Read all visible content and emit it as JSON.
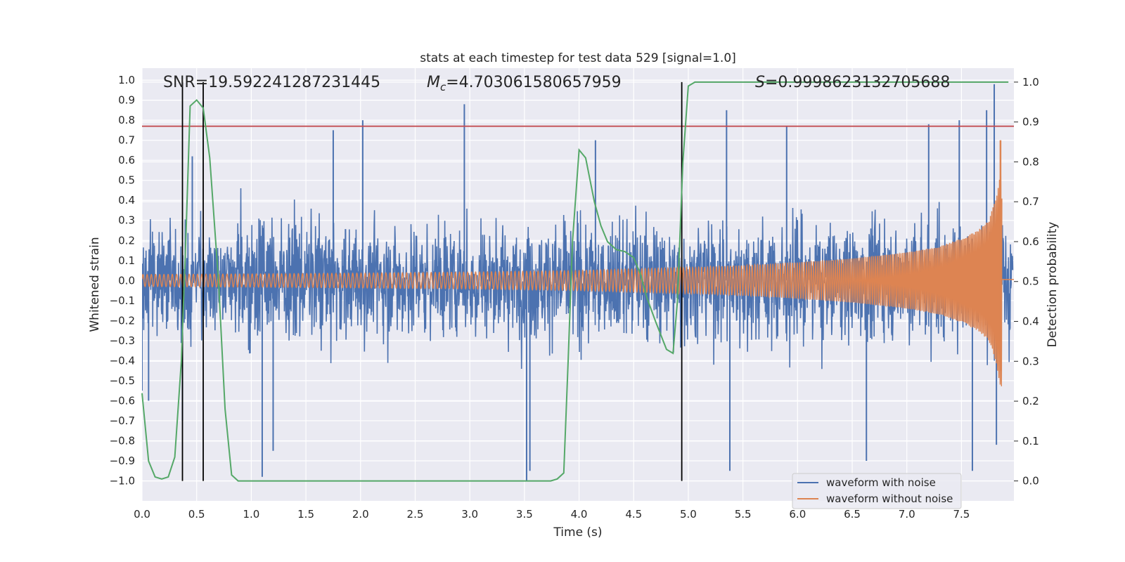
{
  "chart_data": {
    "type": "line",
    "title": "stats at each timestep for test data 529 [signal=1.0]",
    "xlabel": "Time (s)",
    "ylabel_left": "Whitened strain",
    "ylabel_right": "Detection probability",
    "xlim": [
      0.0,
      7.98
    ],
    "ylim_left": [
      -1.1,
      1.06
    ],
    "ylim_right": [
      -0.05,
      1.035
    ],
    "x_ticks": [
      "0.0",
      "0.5",
      "1.0",
      "1.5",
      "2.0",
      "2.5",
      "3.0",
      "3.5",
      "4.0",
      "4.5",
      "5.0",
      "5.5",
      "6.0",
      "6.5",
      "7.0",
      "7.5"
    ],
    "y_ticks_left": [
      "1.0",
      "0.9",
      "0.8",
      "0.7",
      "0.6",
      "0.5",
      "0.4",
      "0.3",
      "0.2",
      "0.1",
      "0.0",
      "-0.1",
      "-0.2",
      "-0.3",
      "-0.4",
      "-0.5",
      "-0.6",
      "-0.7",
      "-0.8",
      "-0.9",
      "-1.0"
    ],
    "y_ticks_right": [
      "1.0",
      "0.9",
      "0.8",
      "0.7",
      "0.6",
      "0.5",
      "0.4",
      "0.3",
      "0.2",
      "0.1",
      "0.0"
    ],
    "grid": true,
    "legend_position": "lower-right",
    "annotations": {
      "snr": "SNR=19.592241287231445",
      "mc_symbol": "M",
      "mc_sub": "c",
      "mc_value": "=4.703061580657959",
      "s_symbol": "S",
      "s_value": "=0.9998623132705688"
    },
    "series": [
      {
        "name": "waveform with noise",
        "color": "#4c72b0",
        "axis": "left",
        "envelope_typical": 0.45,
        "peaks": [
          [
            0.0,
            -0.55
          ],
          [
            0.06,
            -0.6
          ],
          [
            0.37,
            -0.7
          ],
          [
            0.46,
            0.62
          ],
          [
            1.1,
            -0.98
          ],
          [
            1.2,
            -0.85
          ],
          [
            1.75,
            0.75
          ],
          [
            2.02,
            0.8
          ],
          [
            2.95,
            0.88
          ],
          [
            3.52,
            -1.0
          ],
          [
            3.55,
            -0.95
          ],
          [
            4.15,
            0.7
          ],
          [
            5.35,
            0.85
          ],
          [
            5.38,
            -0.95
          ],
          [
            5.9,
            0.77
          ],
          [
            6.63,
            -0.9
          ],
          [
            7.2,
            0.78
          ],
          [
            7.48,
            0.8
          ],
          [
            7.6,
            -0.95
          ],
          [
            7.73,
            0.85
          ],
          [
            7.8,
            0.98
          ],
          [
            7.82,
            -0.82
          ]
        ]
      },
      {
        "name": "waveform without noise",
        "color": "#dd8452",
        "axis": "left",
        "amplitude_points": [
          [
            0.0,
            0.03
          ],
          [
            1.0,
            0.033
          ],
          [
            2.0,
            0.037
          ],
          [
            3.0,
            0.042
          ],
          [
            4.0,
            0.05
          ],
          [
            5.0,
            0.065
          ],
          [
            5.5,
            0.075
          ],
          [
            6.0,
            0.09
          ],
          [
            6.5,
            0.11
          ],
          [
            7.0,
            0.14
          ],
          [
            7.3,
            0.17
          ],
          [
            7.5,
            0.21
          ],
          [
            7.65,
            0.25
          ],
          [
            7.75,
            0.3
          ],
          [
            7.82,
            0.42
          ],
          [
            7.86,
            0.55
          ]
        ],
        "end_amplitude_peaks": [
          0.7,
          -0.45
        ],
        "ringdown_time": 7.87
      },
      {
        "name": "",
        "color": "#55a868",
        "axis": "right",
        "x": [
          0.0,
          0.06,
          0.12,
          0.18,
          0.24,
          0.3,
          0.36,
          0.4,
          0.44,
          0.5,
          0.56,
          0.62,
          0.7,
          0.76,
          0.82,
          0.88,
          1.0,
          2.0,
          3.0,
          3.6,
          3.74,
          3.8,
          3.86,
          3.9,
          3.94,
          4.0,
          4.06,
          4.14,
          4.2,
          4.26,
          4.34,
          4.42,
          4.5,
          4.56,
          4.62,
          4.7,
          4.8,
          4.86,
          4.9,
          4.95,
          5.0,
          5.06,
          5.5,
          7.93
        ],
        "y": [
          0.22,
          0.05,
          0.01,
          0.005,
          0.01,
          0.06,
          0.3,
          0.6,
          0.94,
          0.955,
          0.935,
          0.81,
          0.5,
          0.18,
          0.015,
          0.0,
          0.0,
          0.0,
          0.0,
          0.0,
          0.0,
          0.005,
          0.02,
          0.3,
          0.6,
          0.83,
          0.81,
          0.7,
          0.64,
          0.6,
          0.58,
          0.575,
          0.56,
          0.52,
          0.46,
          0.4,
          0.33,
          0.32,
          0.45,
          0.8,
          0.99,
          1.0,
          1.0,
          1.0
        ]
      }
    ],
    "hlines": [
      {
        "axis": "left",
        "y": 0.77,
        "color": "#c44e52"
      }
    ],
    "vlines": [
      {
        "x": 0.37,
        "color": "#000000"
      },
      {
        "x": 0.56,
        "color": "#000000"
      },
      {
        "x": 4.94,
        "color": "#000000"
      }
    ]
  }
}
